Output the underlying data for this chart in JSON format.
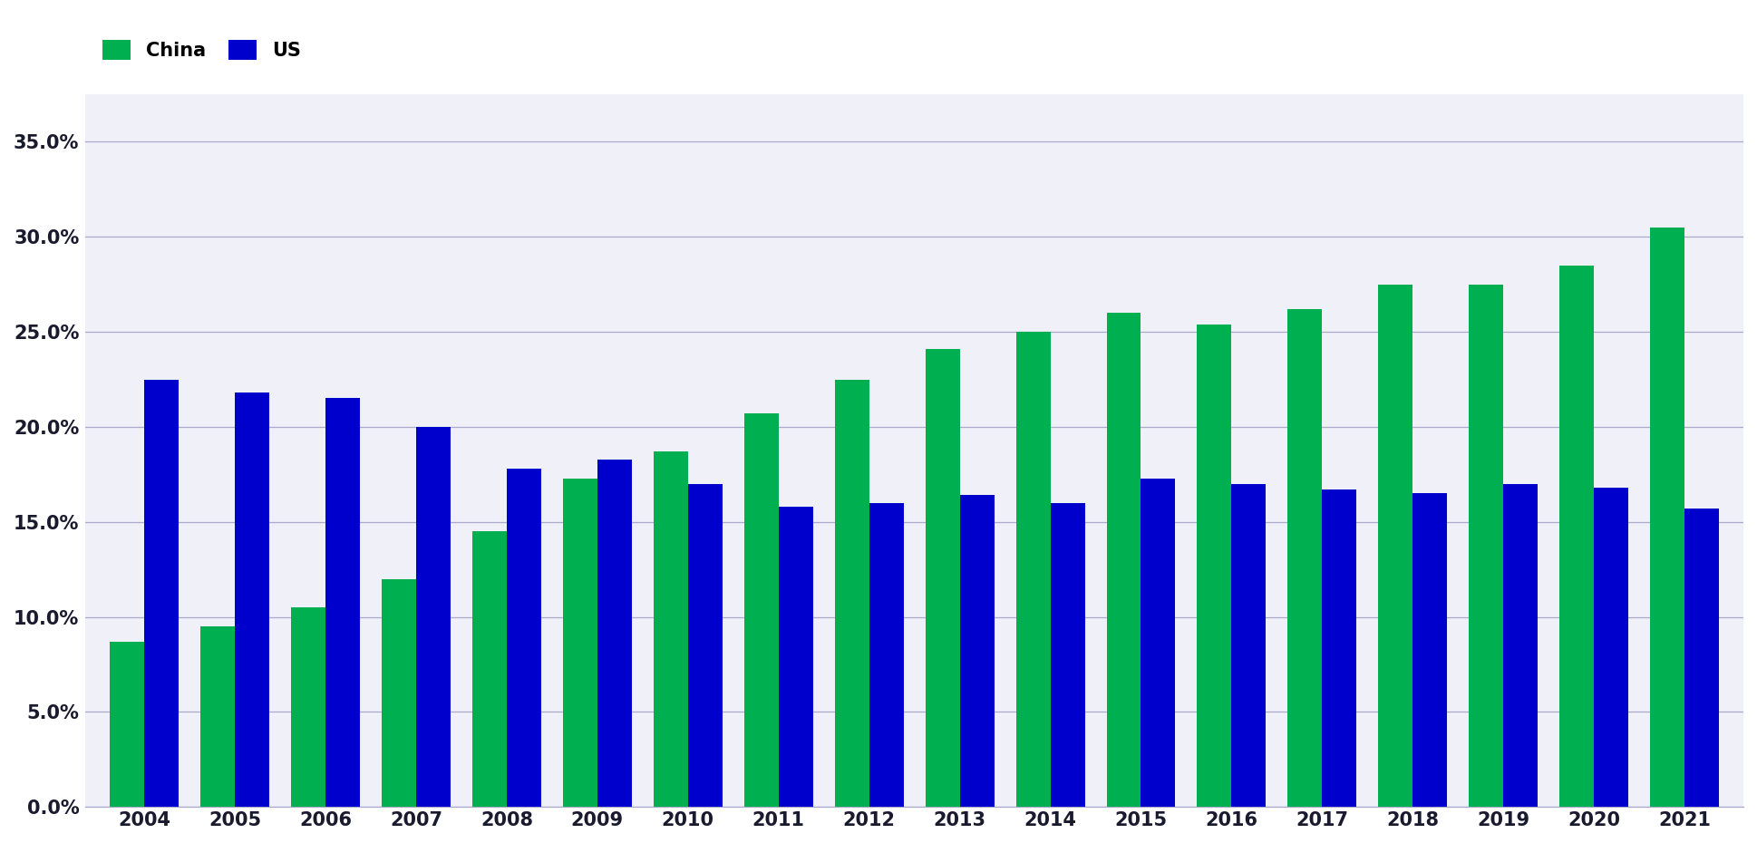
{
  "years": [
    2004,
    2005,
    2006,
    2007,
    2008,
    2009,
    2010,
    2011,
    2012,
    2013,
    2014,
    2015,
    2016,
    2017,
    2018,
    2019,
    2020,
    2021
  ],
  "china": [
    0.087,
    0.095,
    0.105,
    0.12,
    0.145,
    0.173,
    0.187,
    0.207,
    0.225,
    0.241,
    0.25,
    0.26,
    0.254,
    0.262,
    0.275,
    0.275,
    0.285,
    0.305
  ],
  "us": [
    0.225,
    0.218,
    0.215,
    0.2,
    0.178,
    0.183,
    0.17,
    0.158,
    0.16,
    0.164,
    0.16,
    0.173,
    0.17,
    0.167,
    0.165,
    0.17,
    0.168,
    0.157
  ],
  "china_color": "#00B050",
  "us_color": "#0000CC",
  "bar_width": 0.38,
  "ylim": [
    0,
    0.375
  ],
  "yticks": [
    0.0,
    0.05,
    0.1,
    0.15,
    0.2,
    0.25,
    0.3,
    0.35
  ],
  "legend_labels": [
    "China",
    "US"
  ],
  "background_color": "#FFFFFF",
  "plot_bg_color": "#F0F0F8",
  "grid_color": "#AAAACC",
  "tick_fontsize": 15,
  "legend_fontsize": 15,
  "xlim_left": -0.65,
  "xlim_right": 17.65
}
